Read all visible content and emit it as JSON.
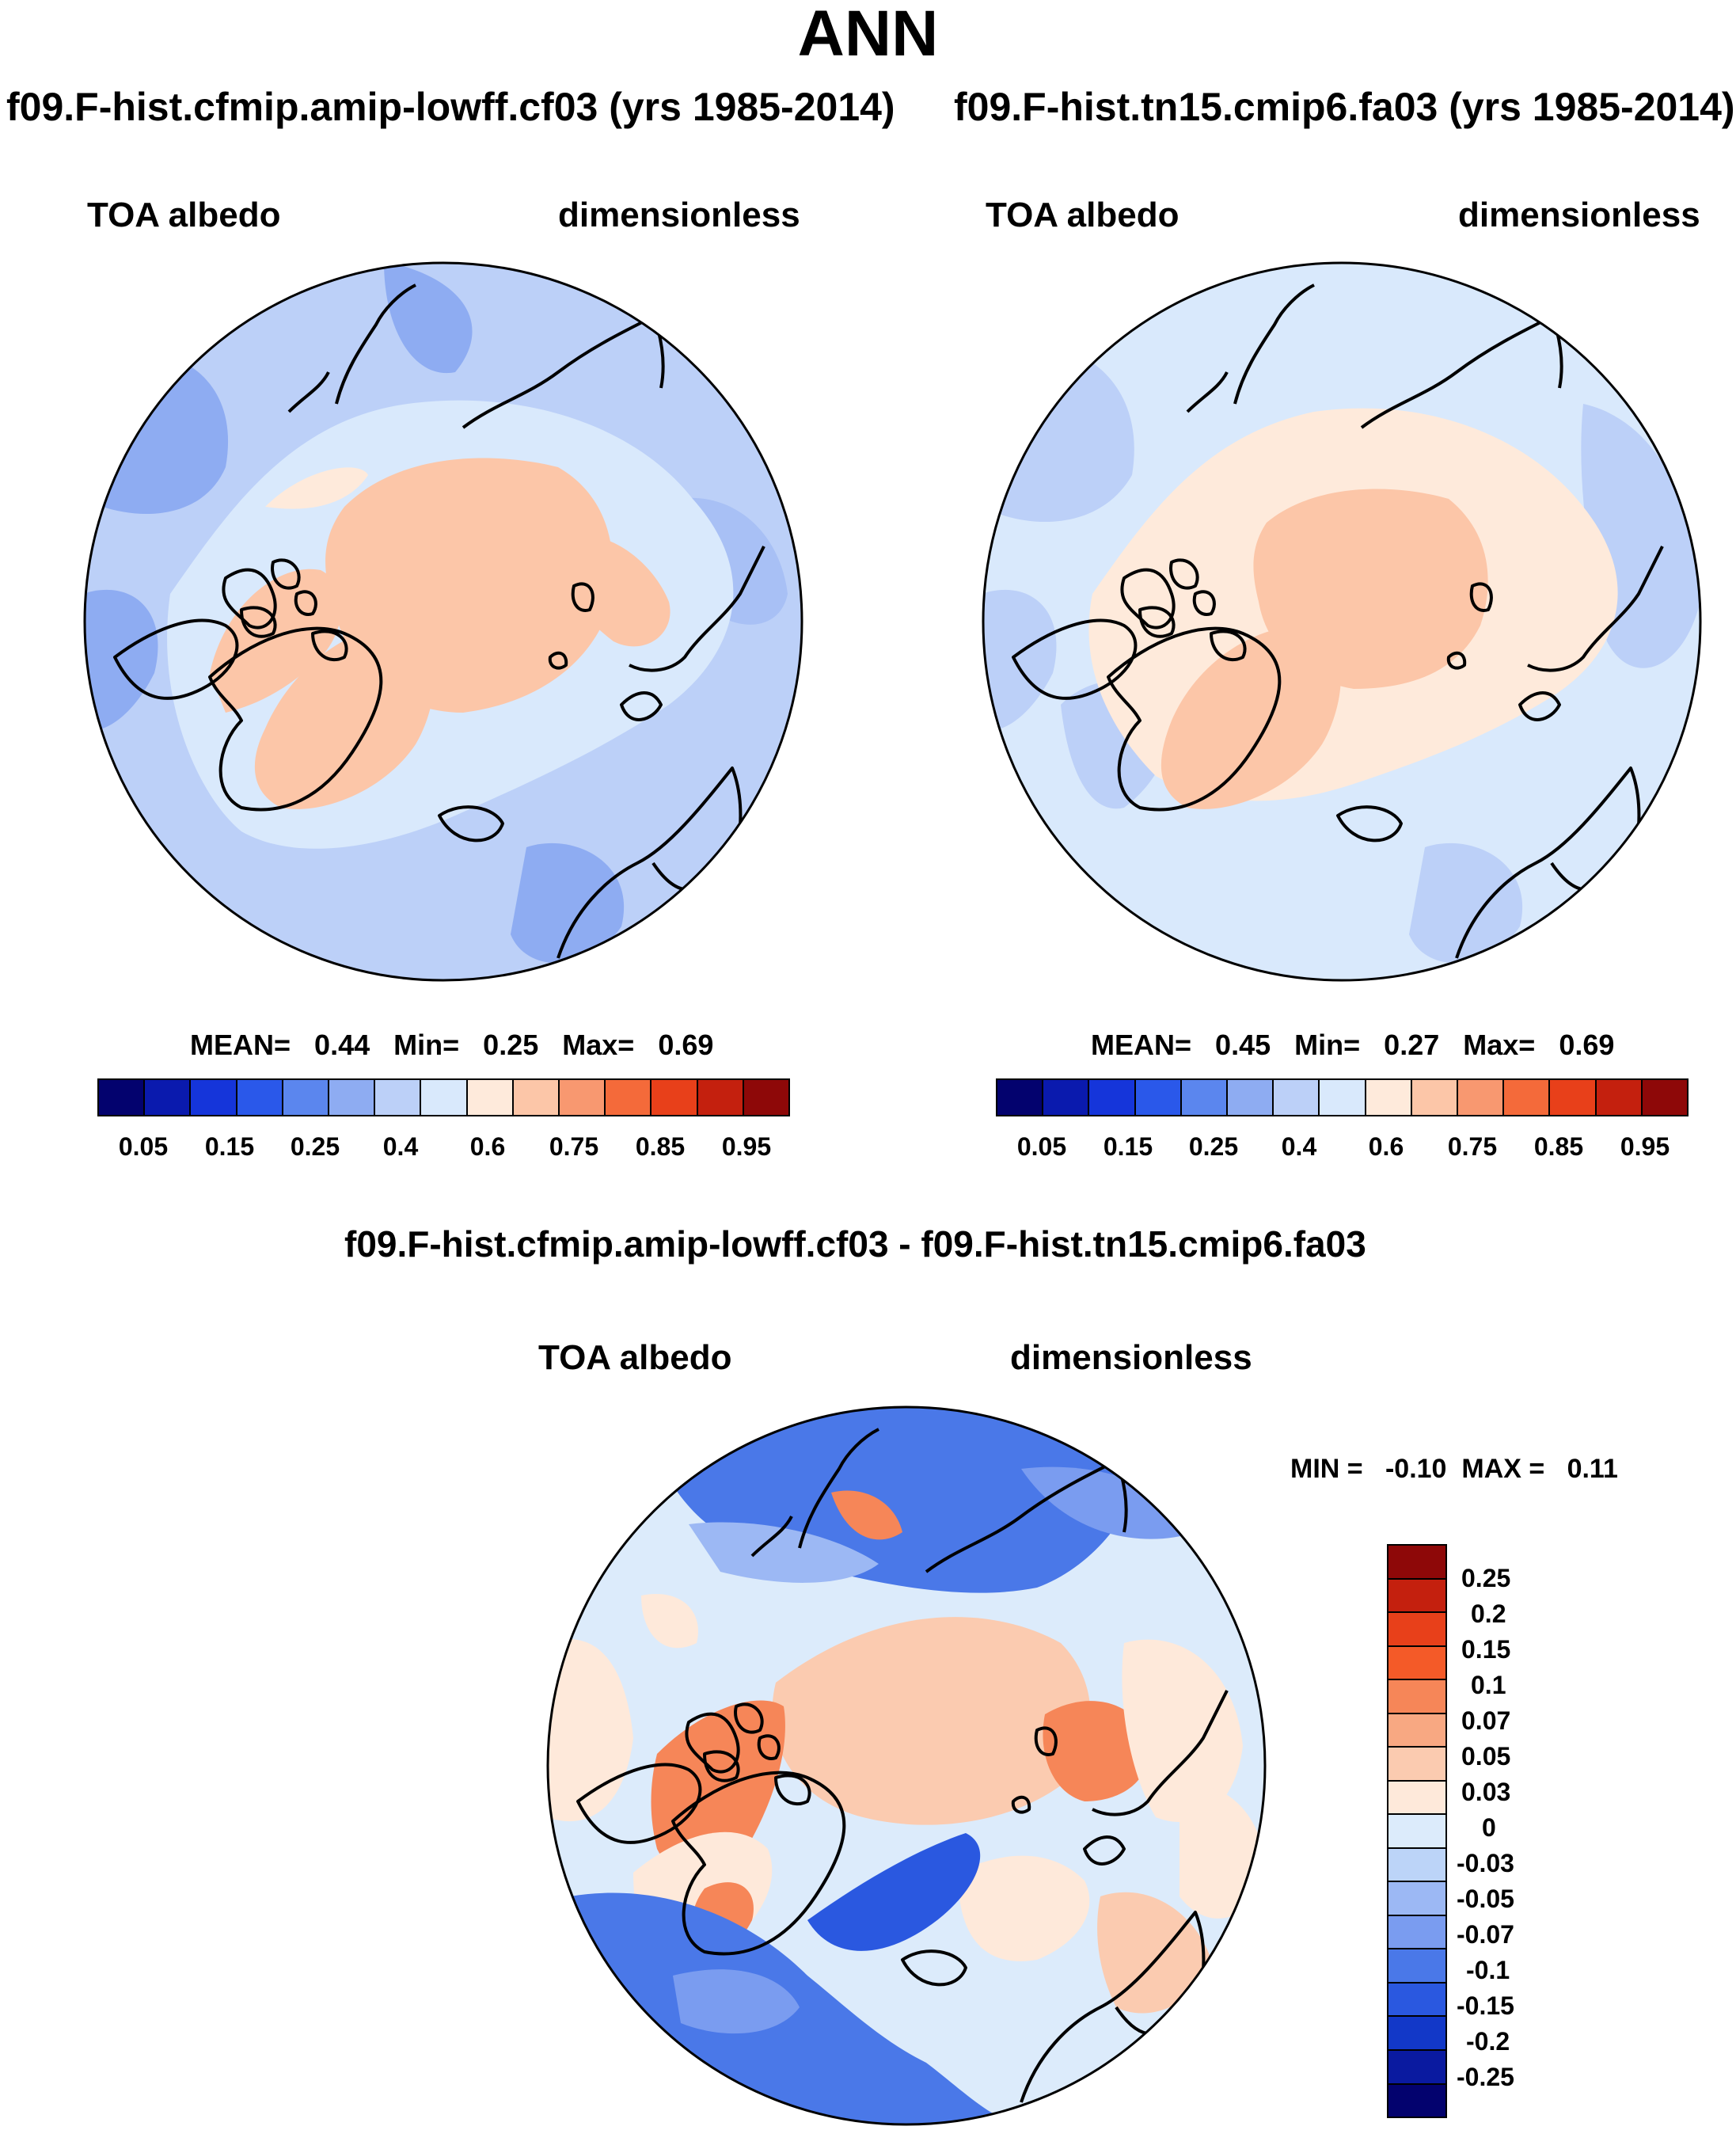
{
  "title": "ANN",
  "colors": {
    "abs_scale": [
      "#03026e",
      "#0a1aae",
      "#1535da",
      "#2a58ea",
      "#5b86ee",
      "#8eacf2",
      "#bcd0f8",
      "#d9e9fc",
      "#feeadb",
      "#fcc6a8",
      "#f89870",
      "#f46a3a",
      "#e8401a",
      "#c4200e",
      "#8e0808"
    ],
    "diff_scale": [
      "#8e0808",
      "#c4200e",
      "#e8401a",
      "#f45a28",
      "#f68658",
      "#f8a882",
      "#fbcbb0",
      "#fee9da",
      "#dcebfb",
      "#bcd4f8",
      "#9cb8f4",
      "#7a9cf0",
      "#4a78e8",
      "#2a58e0",
      "#1238c8",
      "#0a1aa0",
      "#03026e"
    ]
  },
  "panels": [
    {
      "case": "f09.F-hist.cfmip.amip-lowff.cf03 (yrs 1985-2014)",
      "variable": "TOA albedo",
      "units": "dimensionless",
      "stats": {
        "mean_label": "MEAN=",
        "mean": "0.44",
        "min_label": "Min=",
        "min": "0.25",
        "max_label": "Max=",
        "max": "0.69"
      },
      "colorbar_ticks": [
        "0.05",
        "0.15",
        "0.25",
        "0.4",
        "0.6",
        "0.75",
        "0.85",
        "0.95"
      ]
    },
    {
      "case": "f09.F-hist.tn15.cmip6.fa03 (yrs 1985-2014)",
      "variable": "TOA albedo",
      "units": "dimensionless",
      "stats": {
        "mean_label": "MEAN=",
        "mean": "0.45",
        "min_label": "Min=",
        "min": "0.27",
        "max_label": "Max=",
        "max": "0.69"
      },
      "colorbar_ticks": [
        "0.05",
        "0.15",
        "0.25",
        "0.4",
        "0.6",
        "0.75",
        "0.85",
        "0.95"
      ]
    }
  ],
  "diff": {
    "title": "f09.F-hist.cfmip.amip-lowff.cf03 - f09.F-hist.tn15.cmip6.fa03",
    "variable": "TOA albedo",
    "units": "dimensionless",
    "minmax": {
      "min_label": "MIN =",
      "min": "-0.10",
      "max_label": "MAX =",
      "max": "0.11"
    },
    "colorbar_ticks": [
      "0.25",
      "0.2",
      "0.15",
      "0.1",
      "0.07",
      "0.05",
      "0.03",
      "0",
      "-0.03",
      "-0.05",
      "-0.07",
      "-0.1",
      "-0.15",
      "-0.2",
      "-0.25"
    ]
  }
}
